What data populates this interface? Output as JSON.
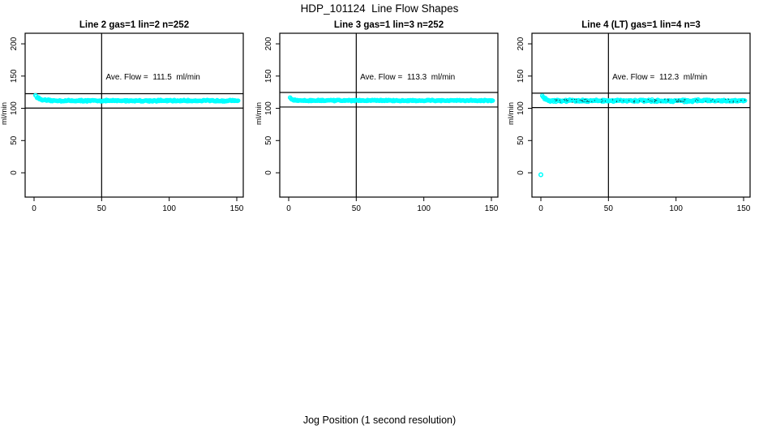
{
  "page": {
    "main_title": "HDP_101124  Line Flow Shapes",
    "x_axis_label": "Jog Position (1 second resolution)",
    "background_color": "#ffffff",
    "accent_color": "#00ffff"
  },
  "chart_data": [
    {
      "type": "scatter",
      "title": "Line 2 gas=1 lin=2 n=252",
      "annotation": "Ave. Flow =  111.5  ml/min",
      "ave_flow_ml_min": 111.5,
      "n": 252,
      "ylabel": "ml/min",
      "x_ticks": [
        0,
        50,
        100,
        150
      ],
      "y_ticks": [
        0,
        50,
        100,
        150,
        200
      ],
      "xlim": [
        -6.6,
        154.8
      ],
      "ylim": [
        -37.7,
        216.4
      ],
      "vline_x": 50,
      "hlines": [
        122.7,
        100.4
      ],
      "grid": false,
      "legend": "none",
      "point_color": "#00ffff",
      "band": {
        "x_start": 1,
        "x_end": 151,
        "n": 252,
        "base": 111.8,
        "start_amp": 8.5,
        "tau": 5,
        "jitter": 1.4
      },
      "outliers": [],
      "specks": null,
      "seed": 12345,
      "annotation_anchor": {
        "x": 88,
        "y": 148.5
      }
    },
    {
      "type": "scatter",
      "title": "Line 3 gas=1 lin=3 n=252",
      "annotation": "Ave. Flow =  113.3  ml/min",
      "ave_flow_ml_min": 113.3,
      "n": 252,
      "ylabel": "ml/min",
      "x_ticks": [
        0,
        50,
        100,
        150
      ],
      "y_ticks": [
        0,
        50,
        100,
        150,
        200
      ],
      "xlim": [
        -6.6,
        154.8
      ],
      "ylim": [
        -37.7,
        216.4
      ],
      "vline_x": 50,
      "hlines": [
        124.6,
        102.0
      ],
      "grid": false,
      "legend": "none",
      "point_color": "#00ffff",
      "band": {
        "x_start": 1,
        "x_end": 151,
        "n": 252,
        "base": 112.1,
        "start_amp": 5.0,
        "tau": 2.5,
        "jitter": 1.1
      },
      "outliers": [],
      "specks": null,
      "seed": 54321,
      "annotation_anchor": {
        "x": 88,
        "y": 148.5
      }
    },
    {
      "type": "scatter",
      "title": "Line 4 (LT) gas=1 lin=4 n=3",
      "annotation": "Ave. Flow =  112.3  ml/min",
      "ave_flow_ml_min": 112.3,
      "n": 3,
      "ylabel": "ml/min",
      "x_ticks": [
        0,
        50,
        100,
        150
      ],
      "y_ticks": [
        0,
        50,
        100,
        150,
        200
      ],
      "xlim": [
        -6.6,
        154.8
      ],
      "ylim": [
        -37.7,
        216.4
      ],
      "vline_x": 50,
      "hlines": [
        123.5,
        101.1
      ],
      "grid": false,
      "legend": "none",
      "point_color": "#00ffff",
      "band": {
        "x_start": 1,
        "x_end": 151,
        "n": 252,
        "base": 111.8,
        "start_amp": 7.5,
        "tau": 4,
        "jitter": 2.1
      },
      "outliers": [
        [
          0,
          -3
        ]
      ],
      "specks": {
        "count": 90,
        "color": "#0d2b33",
        "spread": 2.4
      },
      "seed": 98765,
      "annotation_anchor": {
        "x": 88,
        "y": 148.5
      }
    }
  ]
}
